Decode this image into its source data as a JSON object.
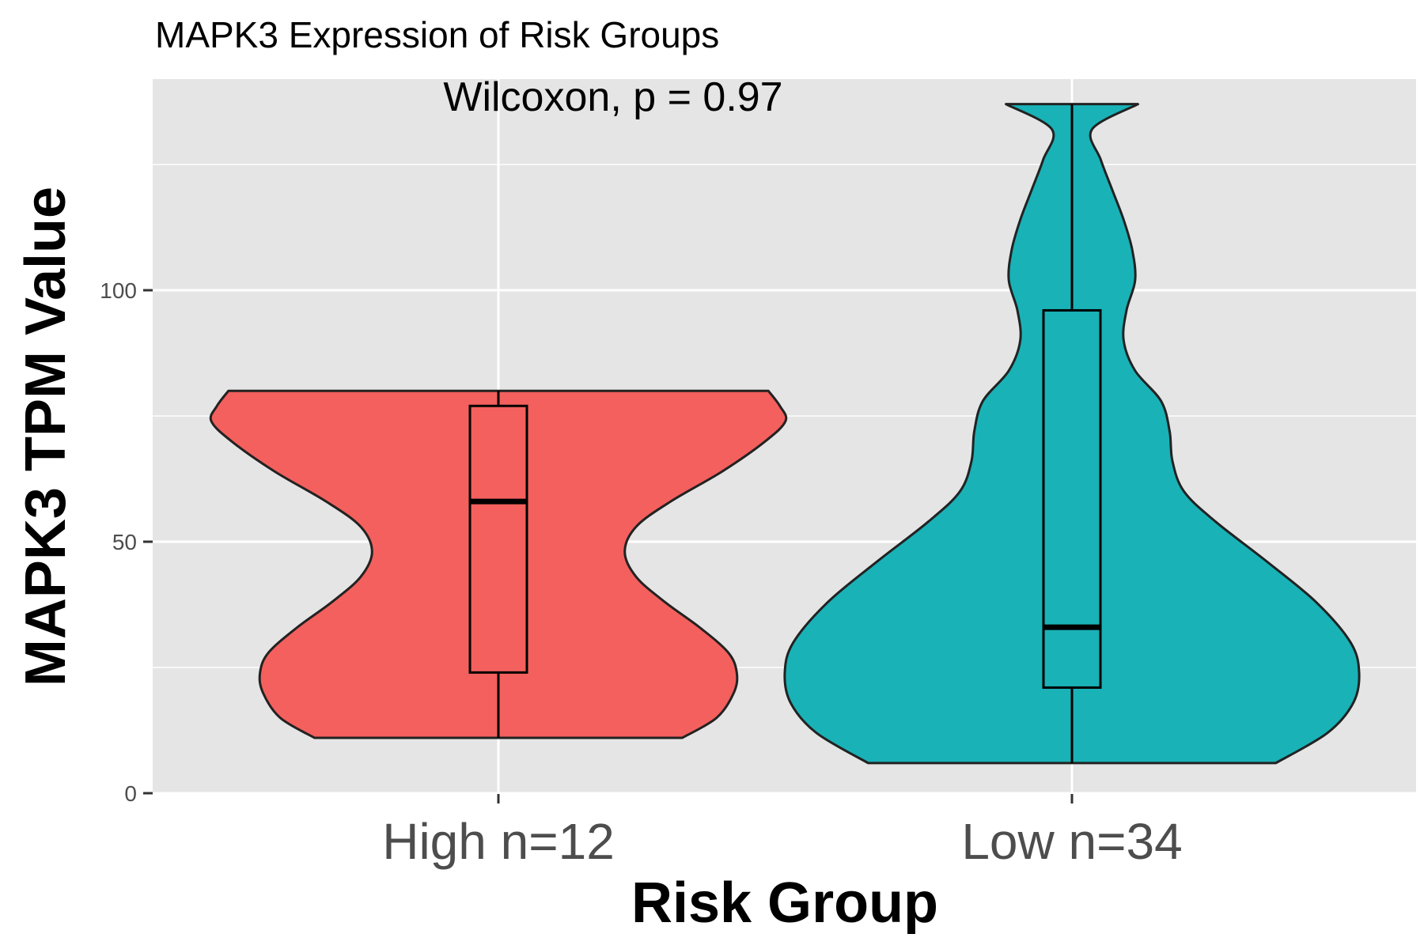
{
  "chart_data": {
    "type": "violin",
    "title": "MAPK3 Expression of Risk Groups",
    "subtitle": "Wilcoxon, p = 0.97",
    "xlabel": "Risk Group",
    "ylabel": "MAPK3 TPM Value",
    "ylim": [
      0,
      137
    ],
    "y_ticks": [
      0,
      50,
      100
    ],
    "grid": true,
    "legend": "none",
    "panel_background": "#e5e5e5",
    "groups": [
      {
        "name": "High n=12",
        "color": "#f3605d",
        "min": 11,
        "q1": 24,
        "median": 58,
        "q3": 77,
        "max": 80,
        "density": [
          [
            11,
            0.64
          ],
          [
            15,
            0.76
          ],
          [
            20,
            0.82
          ],
          [
            24,
            0.83
          ],
          [
            28,
            0.8
          ],
          [
            33,
            0.7
          ],
          [
            38,
            0.58
          ],
          [
            43,
            0.48
          ],
          [
            48,
            0.44
          ],
          [
            53,
            0.48
          ],
          [
            58,
            0.6
          ],
          [
            64,
            0.78
          ],
          [
            70,
            0.93
          ],
          [
            74,
            1.0
          ],
          [
            77,
            0.98
          ],
          [
            80,
            0.94
          ]
        ]
      },
      {
        "name": "Low n=34",
        "color": "#19b2b7",
        "min": 6,
        "q1": 21,
        "median": 33,
        "q3": 96,
        "max": 137,
        "density": [
          [
            6,
            0.71
          ],
          [
            12,
            0.89
          ],
          [
            18,
            0.98
          ],
          [
            24,
            1.0
          ],
          [
            30,
            0.97
          ],
          [
            38,
            0.85
          ],
          [
            46,
            0.68
          ],
          [
            54,
            0.5
          ],
          [
            60,
            0.39
          ],
          [
            66,
            0.35
          ],
          [
            72,
            0.34
          ],
          [
            78,
            0.31
          ],
          [
            84,
            0.22
          ],
          [
            90,
            0.18
          ],
          [
            96,
            0.19
          ],
          [
            102,
            0.22
          ],
          [
            108,
            0.21
          ],
          [
            114,
            0.18
          ],
          [
            120,
            0.14
          ],
          [
            126,
            0.1
          ],
          [
            132,
            0.07
          ],
          [
            137,
            0.23
          ]
        ]
      }
    ]
  }
}
